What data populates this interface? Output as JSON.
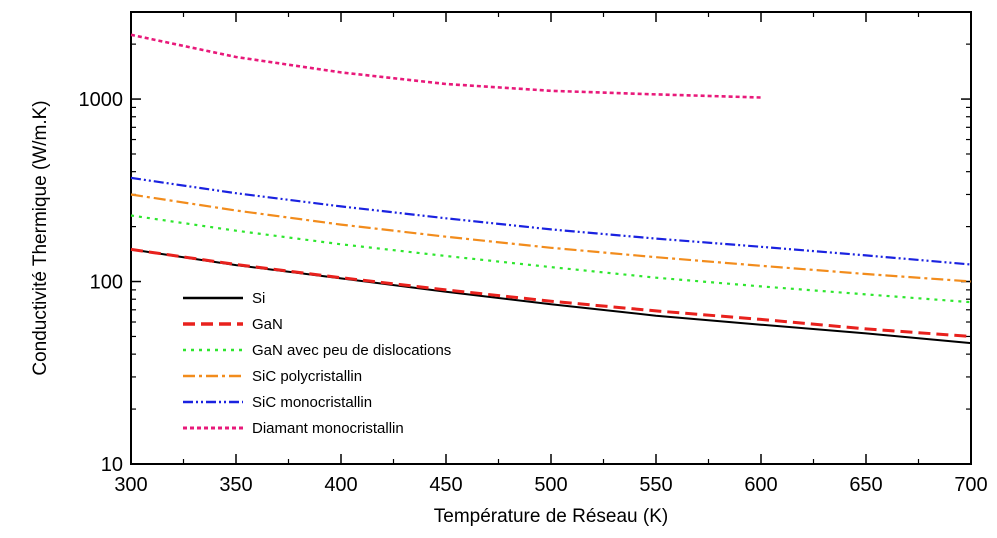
{
  "chart_data": {
    "type": "line",
    "title": "",
    "xlabel": "Température de Réseau (K)",
    "ylabel": "Conductivité Thermique (W/m.K)",
    "xlim": [
      300,
      700
    ],
    "ylim": [
      10,
      3000
    ],
    "yscale": "log",
    "grid": false,
    "legend_position": "bottom-left",
    "x_ticks": [
      300,
      350,
      400,
      450,
      500,
      550,
      600,
      650,
      700
    ],
    "x_tick_labels": [
      "300",
      "350",
      "400",
      "450",
      "500",
      "550",
      "600",
      "650",
      "700"
    ],
    "y_ticks": [
      10,
      100,
      1000
    ],
    "y_tick_labels": [
      "10",
      "100",
      "1000"
    ],
    "series": [
      {
        "name": "Si",
        "color": "#000000",
        "dash": "solid",
        "x": [
          300,
          350,
          400,
          450,
          500,
          550,
          600,
          650,
          700
        ],
        "y": [
          150,
          123,
          104,
          88,
          75,
          65,
          58,
          52,
          46
        ]
      },
      {
        "name": "GaN",
        "color": "#e8211d",
        "dash": "dashed",
        "x": [
          300,
          350,
          400,
          450,
          500,
          550,
          600,
          650,
          700
        ],
        "y": [
          150,
          124,
          105,
          90,
          78,
          69,
          62,
          55,
          50
        ]
      },
      {
        "name": "GaN avec peu de dislocations",
        "color": "#2ee62e",
        "dash": "dotted",
        "x": [
          300,
          350,
          400,
          450,
          500,
          550,
          600,
          650,
          700
        ],
        "y": [
          230,
          190,
          160,
          138,
          120,
          105,
          94,
          85,
          77
        ]
      },
      {
        "name": "SiC polycristallin",
        "color": "#f28c1c",
        "dash": "dashdot",
        "x": [
          300,
          350,
          400,
          450,
          500,
          550,
          600,
          650,
          700
        ],
        "y": [
          300,
          245,
          205,
          176,
          153,
          136,
          122,
          110,
          100
        ]
      },
      {
        "name": "SiC monocristallin",
        "color": "#1a22e0",
        "dash": "dashdotdot",
        "x": [
          300,
          350,
          400,
          450,
          500,
          550,
          600,
          650,
          700
        ],
        "y": [
          370,
          305,
          258,
          222,
          193,
          172,
          155,
          139,
          124
        ]
      },
      {
        "name": "Diamant monocristallin",
        "color": "#e8197a",
        "dash": "shortdash",
        "x": [
          300,
          350,
          400,
          450,
          500,
          550,
          600
        ],
        "y": [
          2250,
          1700,
          1400,
          1210,
          1110,
          1060,
          1020
        ]
      }
    ]
  }
}
